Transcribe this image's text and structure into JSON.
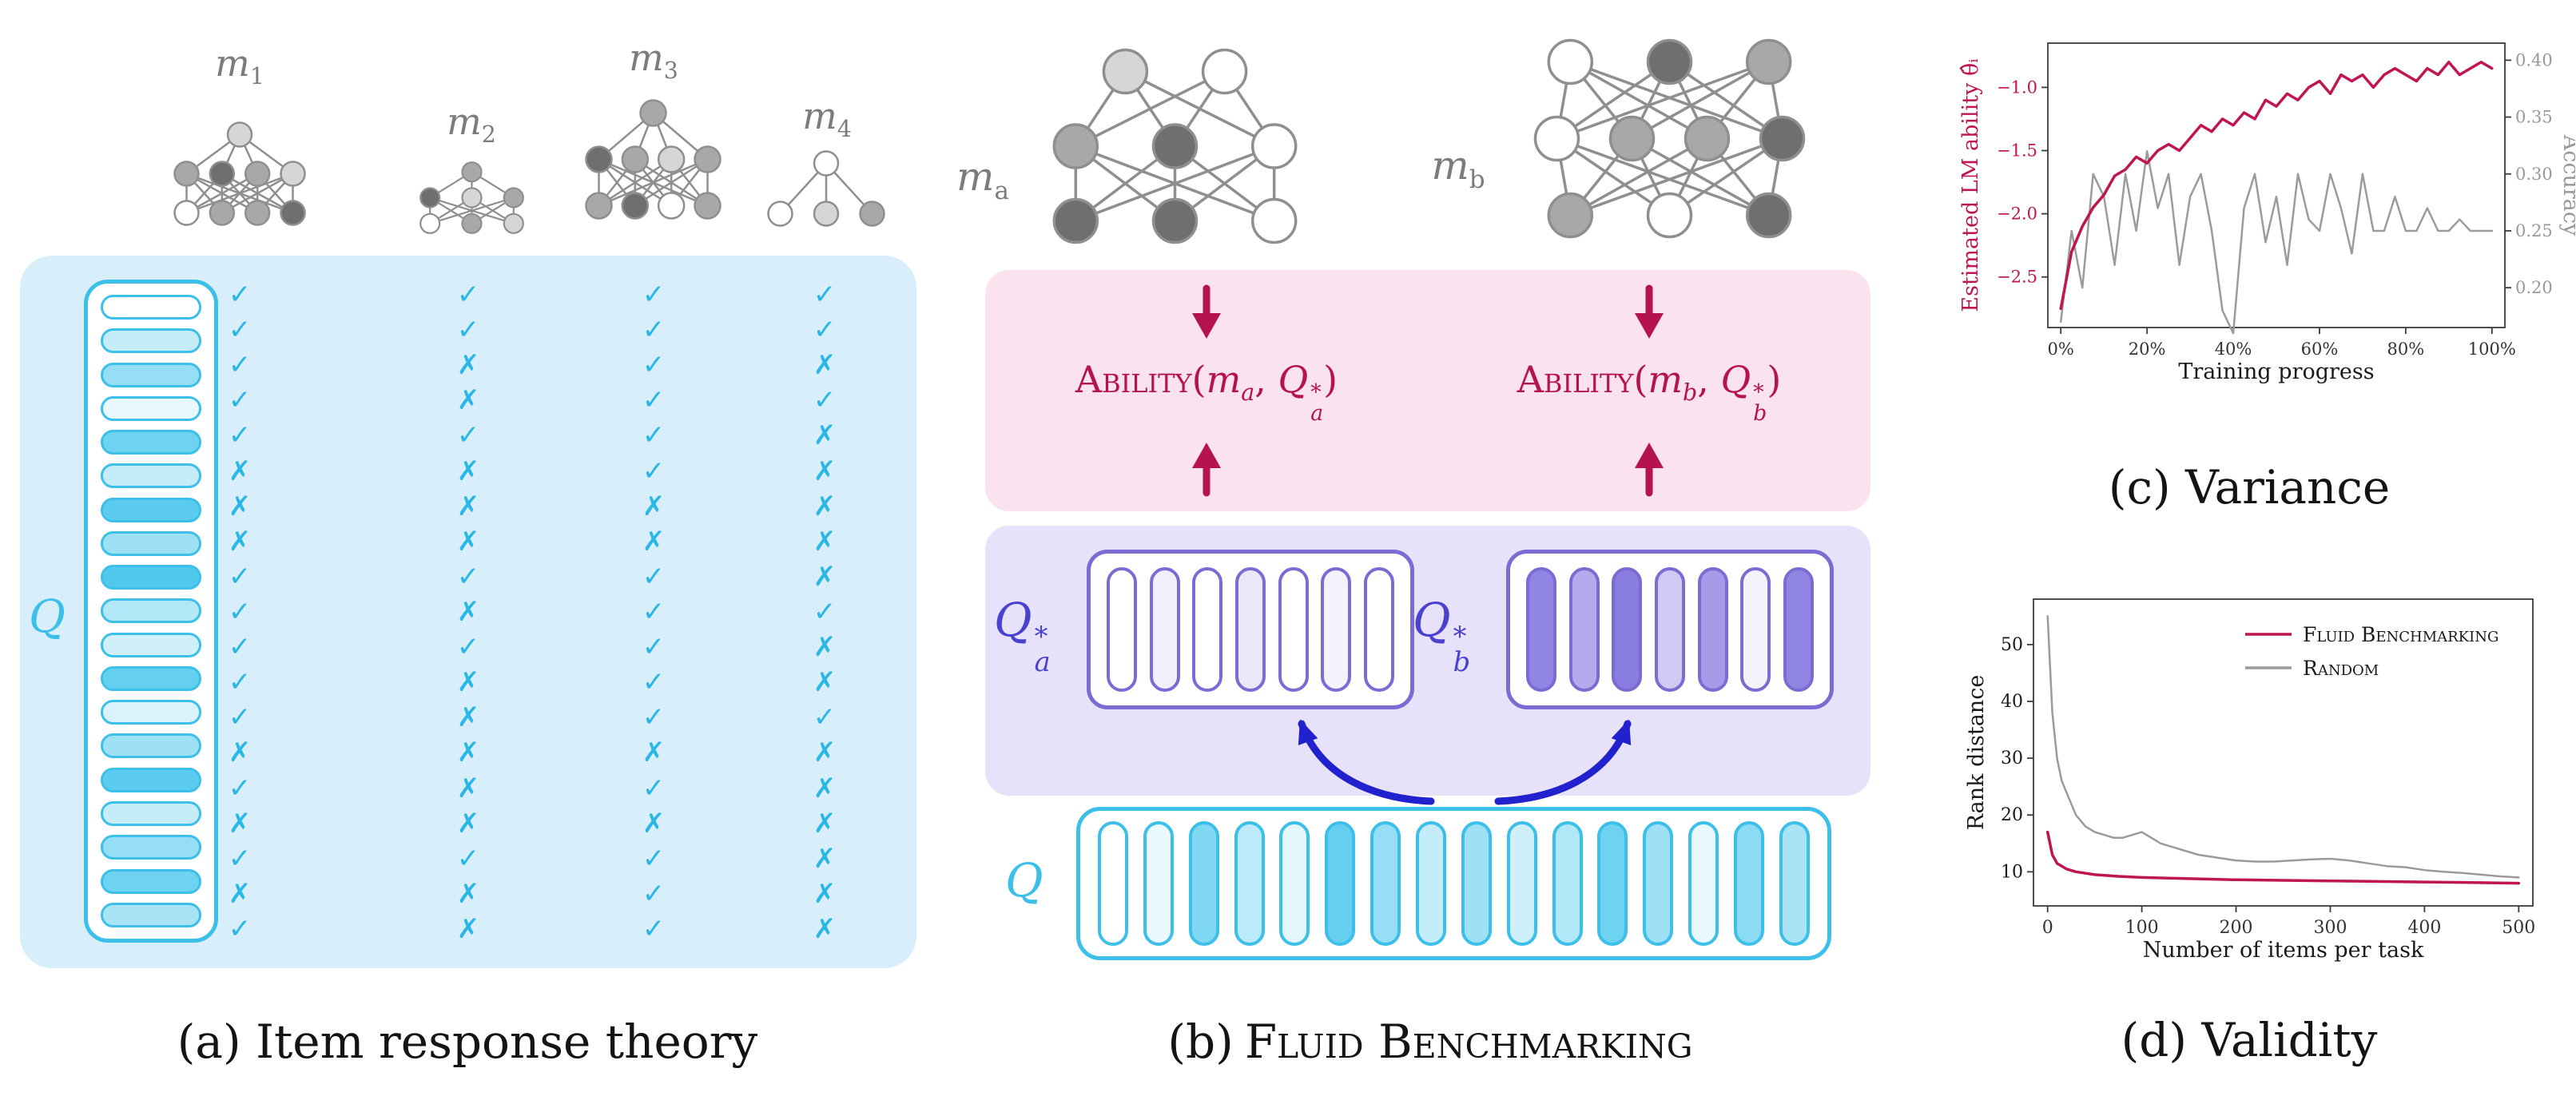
{
  "glyphs": {
    "check": "✓",
    "cross": "✗"
  },
  "colors": {
    "cyan": "#3cbfe8",
    "cyan_fill": "62,195,236",
    "check": "#2ab6e6",
    "panel_a_bg": "#d8eefa",
    "pink_bg": "#fae3ee",
    "purple_bg": "#e7e2f9",
    "purple": "#7b6cd4",
    "purple_fill": "118,102,221",
    "crimson": "#b51350",
    "navy": "#2121cd",
    "gray": "#9b9b9b"
  },
  "panel_a": {
    "caption": "(a) Item response theory",
    "q_label": "Q",
    "models": [
      {
        "label_base": "m",
        "label_sub": "1",
        "results": [
          1,
          1,
          1,
          1,
          1,
          0,
          0,
          0,
          1,
          1,
          1,
          1,
          1,
          0,
          1,
          0,
          1,
          0,
          1
        ]
      },
      {
        "label_base": "m",
        "label_sub": "2",
        "results": [
          1,
          1,
          0,
          0,
          1,
          0,
          0,
          0,
          1,
          0,
          1,
          0,
          0,
          0,
          0,
          0,
          1,
          0,
          0
        ]
      },
      {
        "label_base": "m",
        "label_sub": "3",
        "results": [
          1,
          1,
          1,
          1,
          1,
          1,
          0,
          0,
          1,
          1,
          1,
          1,
          1,
          0,
          1,
          0,
          1,
          1,
          1
        ]
      },
      {
        "label_base": "m",
        "label_sub": "4",
        "results": [
          1,
          1,
          0,
          1,
          0,
          0,
          0,
          0,
          0,
          1,
          0,
          0,
          1,
          0,
          0,
          0,
          0,
          0,
          0
        ]
      }
    ],
    "pills": [
      0,
      0.3,
      0.55,
      0.12,
      0.75,
      0.3,
      0.85,
      0.5,
      0.9,
      0.4,
      0.25,
      0.8,
      0.2,
      0.5,
      0.85,
      0.3,
      0.55,
      0.75,
      0.45
    ]
  },
  "panel_b": {
    "caption_prefix": "(b)",
    "caption_name": "Fluid Benchmarking",
    "model_a": {
      "base": "m",
      "sub": "a"
    },
    "model_b": {
      "base": "m",
      "sub": "b"
    },
    "ability_a": {
      "fn": "Ability",
      "open": "(",
      "m_base": "m",
      "m_sub": "a",
      "sep": ", ",
      "q_base": "Q",
      "q_sup": "*",
      "q_sub": "a",
      "close": ")"
    },
    "ability_b": {
      "fn": "Ability",
      "open": "(",
      "m_base": "m",
      "m_sub": "b",
      "sep": ", ",
      "q_base": "Q",
      "q_sup": "*",
      "q_sub": "b",
      "close": ")"
    },
    "qa_label": {
      "base": "Q",
      "sup": "*",
      "sub": "a"
    },
    "qb_label": {
      "base": "Q",
      "sup": "*",
      "sub": "b"
    },
    "q_label": "Q",
    "qa_pills": [
      0,
      0.1,
      0,
      0.15,
      0,
      0.08,
      0
    ],
    "qb_pills": [
      0.8,
      0.55,
      0.85,
      0.35,
      0.65,
      0.08,
      0.8
    ],
    "q_pills": [
      0,
      0.1,
      0.65,
      0.35,
      0.15,
      0.8,
      0.55,
      0.3,
      0.5,
      0.25,
      0.4,
      0.75,
      0.5,
      0.12,
      0.6,
      0.45
    ]
  },
  "panel_c": {
    "caption": "(c) Variance"
  },
  "panel_d": {
    "caption": "(d) Validity"
  },
  "nets": {
    "m1": {
      "r": 15,
      "stroke": 2.5,
      "layers": [
        [
          "l"
        ],
        [
          "g",
          "d",
          "g",
          "l"
        ],
        [
          "w",
          "g",
          "g",
          "d"
        ]
      ]
    },
    "m2": {
      "r": 12,
      "stroke": 2.2,
      "layers": [
        [
          "g"
        ],
        [
          "d",
          "l",
          "g"
        ],
        [
          "w",
          "g",
          "l"
        ]
      ]
    },
    "m3": {
      "r": 16,
      "stroke": 2.5,
      "layers": [
        [
          "g"
        ],
        [
          "d",
          "g",
          "l",
          "g"
        ],
        [
          "g",
          "d",
          "w",
          "g"
        ]
      ]
    },
    "m4": {
      "r": 15,
      "stroke": 2.5,
      "layers": [
        [
          "w"
        ],
        [
          "w",
          "l",
          "g"
        ]
      ]
    },
    "ma": {
      "r": 27,
      "stroke": 3.5,
      "layers": [
        [
          "l",
          "w"
        ],
        [
          "g",
          "d",
          "w"
        ],
        [
          "d",
          "d",
          "w"
        ]
      ]
    },
    "mb": {
      "r": 27,
      "stroke": 3.5,
      "layers": [
        [
          "w",
          "d",
          "g"
        ],
        [
          "w",
          "g",
          "g",
          "d"
        ],
        [
          "g",
          "w",
          "d"
        ]
      ]
    }
  },
  "chart_data": [
    {
      "id": "variance",
      "type": "line",
      "xlabel": "Training progress",
      "ylabel_left": "Estimated LM ability θ̂ᵢ",
      "ylabel_right": "Accuracy",
      "xlim": [
        -3,
        103
      ],
      "x_tick_values": [
        0,
        20,
        40,
        60,
        80,
        100
      ],
      "x_tick_labels": [
        "0%",
        "20%",
        "40%",
        "60%",
        "80%",
        "100%"
      ],
      "ylim_left": [
        -2.9,
        -0.65
      ],
      "yticks_left": [
        -2.5,
        -2.0,
        -1.5,
        -1.0
      ],
      "ytick_labels_left": [
        "−2.5",
        "−2.0",
        "−1.5",
        "−1.0"
      ],
      "ylim_right": [
        0.165,
        0.415
      ],
      "yticks_right": [
        0.2,
        0.25,
        0.3,
        0.35,
        0.4
      ],
      "ytick_labels_right": [
        "0.20",
        "0.25",
        "0.30",
        "0.35",
        "0.40"
      ],
      "legend_shown": false,
      "series": [
        {
          "name": "Estimated LM ability",
          "axis": "left",
          "color": "#bf1550",
          "x": [
            0,
            2.5,
            5,
            7.5,
            10,
            12.5,
            15,
            17.5,
            20,
            22.5,
            25,
            27.5,
            30,
            32.5,
            35,
            37.5,
            40,
            42.5,
            45,
            47.5,
            50,
            52.5,
            55,
            57.5,
            60,
            62.5,
            65,
            67.5,
            70,
            72.5,
            75,
            77.5,
            80,
            82.5,
            85,
            87.5,
            90,
            92.5,
            95,
            97.5,
            100
          ],
          "y": [
            -2.75,
            -2.3,
            -2.1,
            -1.95,
            -1.85,
            -1.7,
            -1.65,
            -1.55,
            -1.6,
            -1.5,
            -1.45,
            -1.5,
            -1.4,
            -1.3,
            -1.35,
            -1.25,
            -1.3,
            -1.2,
            -1.25,
            -1.1,
            -1.15,
            -1.05,
            -1.1,
            -1.0,
            -0.95,
            -1.05,
            -0.9,
            -0.95,
            -0.9,
            -1.0,
            -0.9,
            -0.85,
            -0.9,
            -0.95,
            -0.85,
            -0.9,
            -0.8,
            -0.9,
            -0.85,
            -0.8,
            -0.85
          ]
        },
        {
          "name": "Accuracy",
          "axis": "right",
          "color": "#9b9b9b",
          "x": [
            0,
            2.5,
            5,
            7.5,
            10,
            12.5,
            15,
            17.5,
            20,
            22.5,
            25,
            27.5,
            30,
            32.5,
            35,
            37.5,
            40,
            42.5,
            45,
            47.5,
            50,
            52.5,
            55,
            57.5,
            60,
            62.5,
            65,
            67.5,
            70,
            72.5,
            75,
            77.5,
            80,
            82.5,
            85,
            87.5,
            90,
            92.5,
            95,
            97.5,
            100
          ],
          "y": [
            0.17,
            0.25,
            0.2,
            0.3,
            0.28,
            0.22,
            0.3,
            0.25,
            0.32,
            0.27,
            0.3,
            0.22,
            0.28,
            0.3,
            0.25,
            0.18,
            0.16,
            0.27,
            0.3,
            0.24,
            0.28,
            0.22,
            0.3,
            0.26,
            0.25,
            0.3,
            0.27,
            0.23,
            0.3,
            0.25,
            0.25,
            0.28,
            0.25,
            0.25,
            0.27,
            0.25,
            0.25,
            0.26,
            0.25,
            0.25,
            0.25
          ]
        }
      ]
    },
    {
      "id": "validity",
      "type": "line",
      "xlabel": "Number of items per task",
      "ylabel": "Rank distance",
      "xlim": [
        -15,
        515
      ],
      "x_tick_values": [
        0,
        100,
        200,
        300,
        400,
        500
      ],
      "x_tick_labels": [
        "0",
        "100",
        "200",
        "300",
        "400",
        "500"
      ],
      "ylim": [
        4,
        58
      ],
      "yticks": [
        10,
        20,
        30,
        40,
        50
      ],
      "ytick_labels": [
        "10",
        "20",
        "30",
        "40",
        "50"
      ],
      "legend_shown": true,
      "legend_position": "top-right",
      "series": [
        {
          "name": "Fluid Benchmarking",
          "color": "#bf1550",
          "x": [
            0,
            5,
            10,
            20,
            30,
            50,
            75,
            100,
            150,
            200,
            250,
            300,
            350,
            400,
            450,
            500
          ],
          "y": [
            17,
            13,
            11.5,
            10.5,
            10,
            9.5,
            9.2,
            9,
            8.8,
            8.6,
            8.5,
            8.4,
            8.3,
            8.2,
            8.1,
            8
          ]
        },
        {
          "name": "Random",
          "color": "#9b9b9b",
          "x": [
            0,
            5,
            10,
            15,
            20,
            30,
            40,
            50,
            60,
            70,
            80,
            90,
            100,
            110,
            120,
            140,
            160,
            180,
            200,
            220,
            240,
            260,
            280,
            300,
            320,
            340,
            360,
            380,
            400,
            420,
            440,
            460,
            480,
            500
          ],
          "y": [
            55,
            38,
            30,
            26,
            24,
            20,
            18,
            17,
            16.5,
            16,
            16,
            16.5,
            17,
            16,
            15,
            14,
            13,
            12.5,
            12,
            11.8,
            11.8,
            12,
            12.2,
            12.3,
            12,
            11.5,
            11,
            10.8,
            10.3,
            10,
            9.8,
            9.5,
            9.2,
            9
          ]
        }
      ]
    }
  ]
}
